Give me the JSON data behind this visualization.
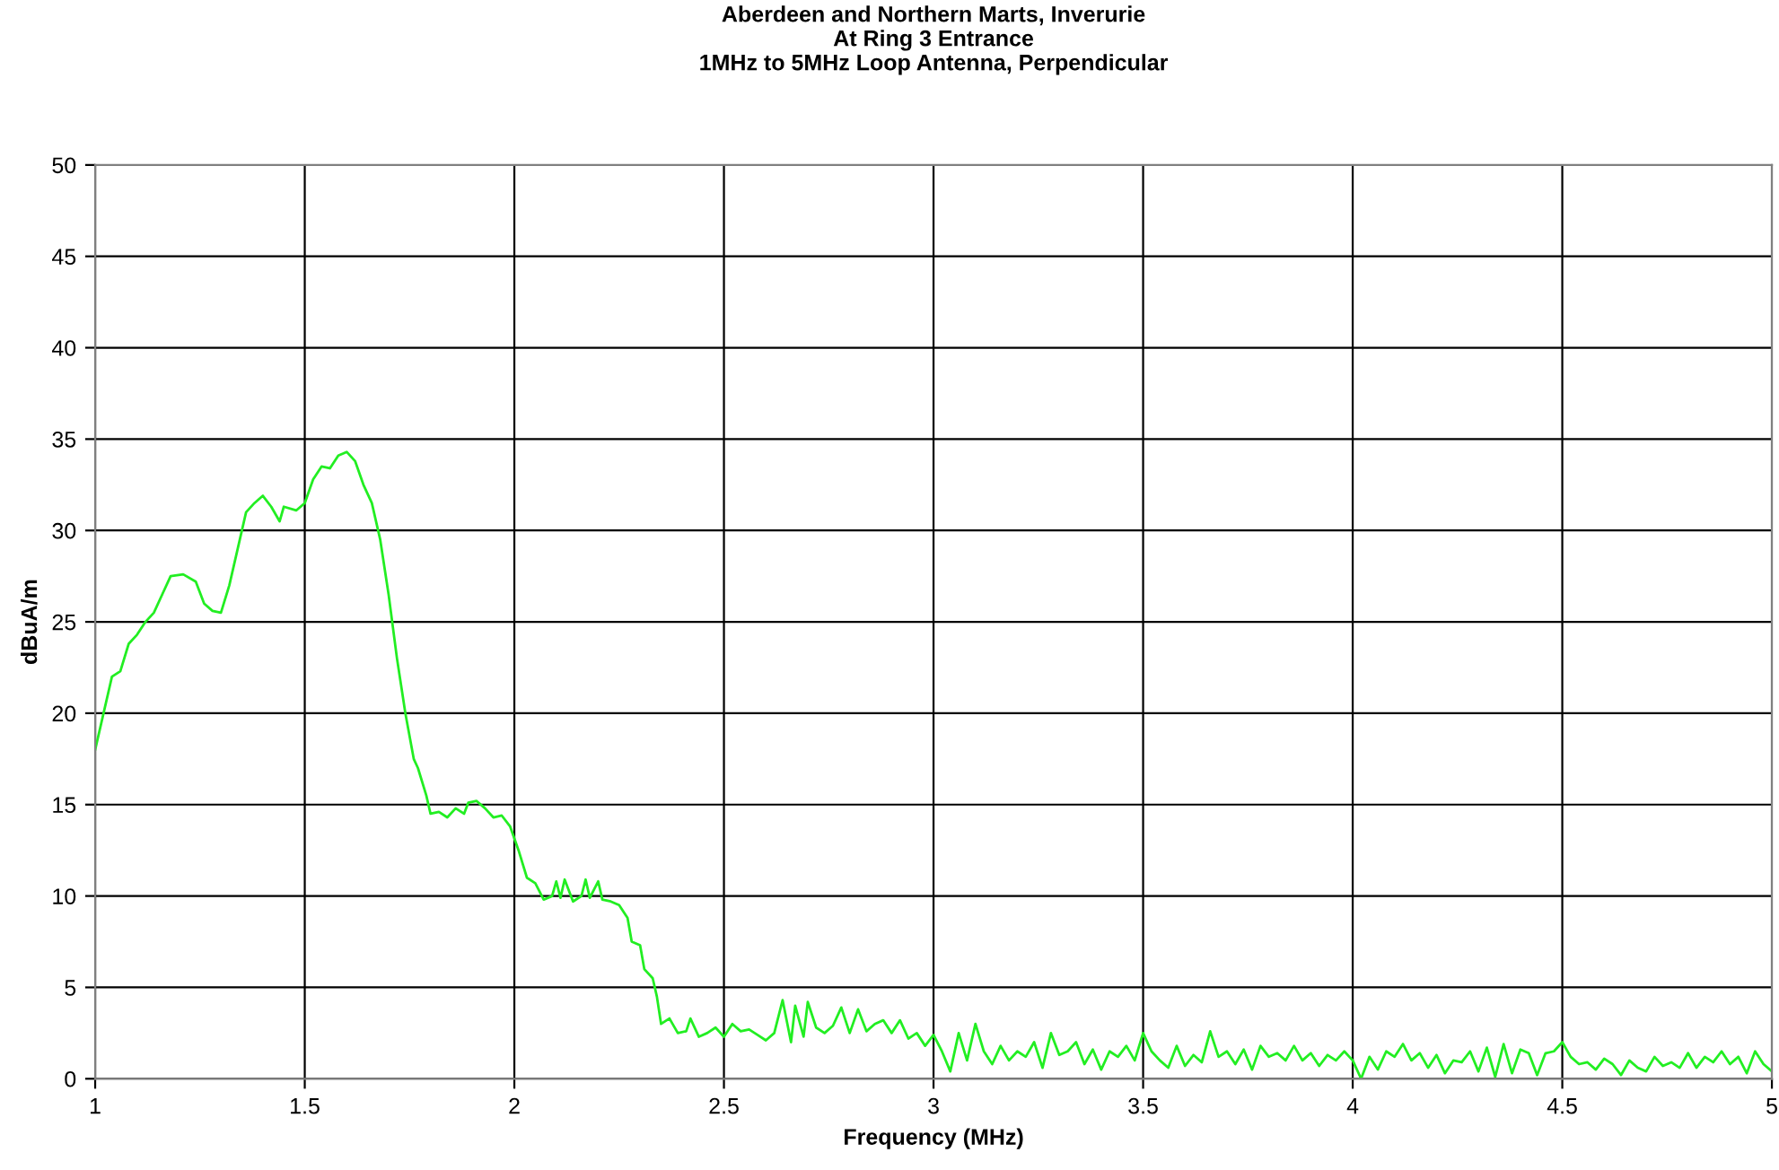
{
  "chart_data": {
    "type": "line",
    "title": "Aberdeen and Northern Marts, Inverurie\nAt Ring 3 Entrance\n1MHz to 5MHz Loop Antenna, Perpendicular",
    "xlabel": "Frequency (MHz)",
    "ylabel": "dBuA/m",
    "xlim": [
      1,
      5
    ],
    "xticks": [
      1,
      1.5,
      2,
      2.5,
      3,
      3.5,
      4,
      4.5,
      5
    ],
    "ylim": [
      0,
      50
    ],
    "yticks": [
      0,
      5,
      10,
      15,
      20,
      25,
      30,
      35,
      40,
      45,
      50
    ],
    "grid": true,
    "marker": "none",
    "line_style": "solid",
    "series": [
      {
        "color": "#22ee22",
        "x": [
          1.0,
          1.02,
          1.04,
          1.06,
          1.08,
          1.1,
          1.12,
          1.14,
          1.16,
          1.18,
          1.21,
          1.24,
          1.26,
          1.28,
          1.3,
          1.32,
          1.34,
          1.36,
          1.38,
          1.4,
          1.42,
          1.44,
          1.45,
          1.48,
          1.5,
          1.52,
          1.54,
          1.56,
          1.58,
          1.6,
          1.62,
          1.64,
          1.66,
          1.68,
          1.7,
          1.72,
          1.74,
          1.76,
          1.77,
          1.79,
          1.8,
          1.82,
          1.84,
          1.86,
          1.88,
          1.89,
          1.91,
          1.93,
          1.95,
          1.97,
          1.99,
          2.01,
          2.03,
          2.05,
          2.07,
          2.09,
          2.1,
          2.11,
          2.12,
          2.14,
          2.16,
          2.17,
          2.18,
          2.2,
          2.21,
          2.23,
          2.25,
          2.27,
          2.28,
          2.3,
          2.31,
          2.33,
          2.34,
          2.35,
          2.37,
          2.39,
          2.41,
          2.42,
          2.44,
          2.46,
          2.48,
          2.5,
          2.52,
          2.54,
          2.56,
          2.58,
          2.6,
          2.62,
          2.64,
          2.66,
          2.67,
          2.69,
          2.7,
          2.72,
          2.74,
          2.76,
          2.78,
          2.8,
          2.82,
          2.84,
          2.86,
          2.88,
          2.9,
          2.92,
          2.94,
          2.96,
          2.98,
          3.0,
          3.02,
          3.04,
          3.06,
          3.08,
          3.1,
          3.12,
          3.14,
          3.16,
          3.18,
          3.2,
          3.22,
          3.24,
          3.26,
          3.28,
          3.3,
          3.32,
          3.34,
          3.36,
          3.38,
          3.4,
          3.42,
          3.44,
          3.46,
          3.48,
          3.5,
          3.52,
          3.54,
          3.56,
          3.58,
          3.6,
          3.62,
          3.64,
          3.66,
          3.68,
          3.7,
          3.72,
          3.74,
          3.76,
          3.78,
          3.8,
          3.82,
          3.84,
          3.86,
          3.88,
          3.9,
          3.92,
          3.94,
          3.96,
          3.98,
          4.0,
          4.02,
          4.04,
          4.06,
          4.08,
          4.1,
          4.12,
          4.14,
          4.16,
          4.18,
          4.2,
          4.22,
          4.24,
          4.26,
          4.28,
          4.3,
          4.32,
          4.34,
          4.36,
          4.38,
          4.4,
          4.42,
          4.44,
          4.46,
          4.48,
          4.5,
          4.52,
          4.54,
          4.56,
          4.58,
          4.6,
          4.62,
          4.64,
          4.66,
          4.68,
          4.7,
          4.72,
          4.74,
          4.76,
          4.78,
          4.8,
          4.82,
          4.84,
          4.86,
          4.88,
          4.9,
          4.92,
          4.94,
          4.96,
          4.98,
          5.0
        ],
        "values": [
          18,
          20,
          22,
          22.3,
          23.8,
          24.3,
          25,
          25.5,
          26.5,
          27.5,
          27.6,
          27.2,
          26,
          25.6,
          25.5,
          27,
          29,
          31,
          31.5,
          31.9,
          31.3,
          30.5,
          31.3,
          31.1,
          31.5,
          32.8,
          33.5,
          33.4,
          34.1,
          34.3,
          33.8,
          32.5,
          31.5,
          29.5,
          26.5,
          23,
          20,
          17.5,
          17,
          15.5,
          14.5,
          14.6,
          14.3,
          14.8,
          14.5,
          15.1,
          15.2,
          14.8,
          14.3,
          14.4,
          13.8,
          12.5,
          11,
          10.7,
          9.8,
          10,
          10.8,
          9.9,
          10.9,
          9.7,
          10,
          10.9,
          9.9,
          10.8,
          9.8,
          9.7,
          9.5,
          8.8,
          7.5,
          7.3,
          6,
          5.5,
          4.5,
          3,
          3.3,
          2.5,
          2.6,
          3.3,
          2.3,
          2.5,
          2.8,
          2.3,
          3,
          2.6,
          2.7,
          2.4,
          2.1,
          2.5,
          4.3,
          2,
          4,
          2.3,
          4.2,
          2.8,
          2.5,
          2.9,
          3.9,
          2.5,
          3.8,
          2.6,
          3,
          3.2,
          2.5,
          3.2,
          2.2,
          2.5,
          1.8,
          2.4,
          1.5,
          0.4,
          2.5,
          1,
          3,
          1.5,
          0.8,
          1.8,
          1,
          1.5,
          1.2,
          2,
          0.6,
          2.5,
          1.3,
          1.5,
          2,
          0.8,
          1.6,
          0.5,
          1.5,
          1.2,
          1.8,
          1,
          2.5,
          1.5,
          1,
          0.6,
          1.8,
          0.7,
          1.3,
          0.9,
          2.6,
          1.2,
          1.5,
          0.8,
          1.6,
          0.5,
          1.8,
          1.2,
          1.4,
          1,
          1.8,
          1,
          1.4,
          0.7,
          1.3,
          1,
          1.5,
          1,
          0,
          1.2,
          0.5,
          1.5,
          1.2,
          1.9,
          1,
          1.4,
          0.6,
          1.3,
          0.3,
          1,
          0.9,
          1.5,
          0.4,
          1.7,
          0.1,
          1.9,
          0.3,
          1.6,
          1.4,
          0.2,
          1.4,
          1.5,
          2,
          1.2,
          0.8,
          0.9,
          0.5,
          1.1,
          0.8,
          0.2,
          1,
          0.6,
          0.4,
          1.2,
          0.7,
          0.9,
          0.6,
          1.4,
          0.6,
          1.2,
          0.9,
          1.5,
          0.8,
          1.2,
          0.3,
          1.5,
          0.8,
          0.4
        ]
      }
    ]
  }
}
